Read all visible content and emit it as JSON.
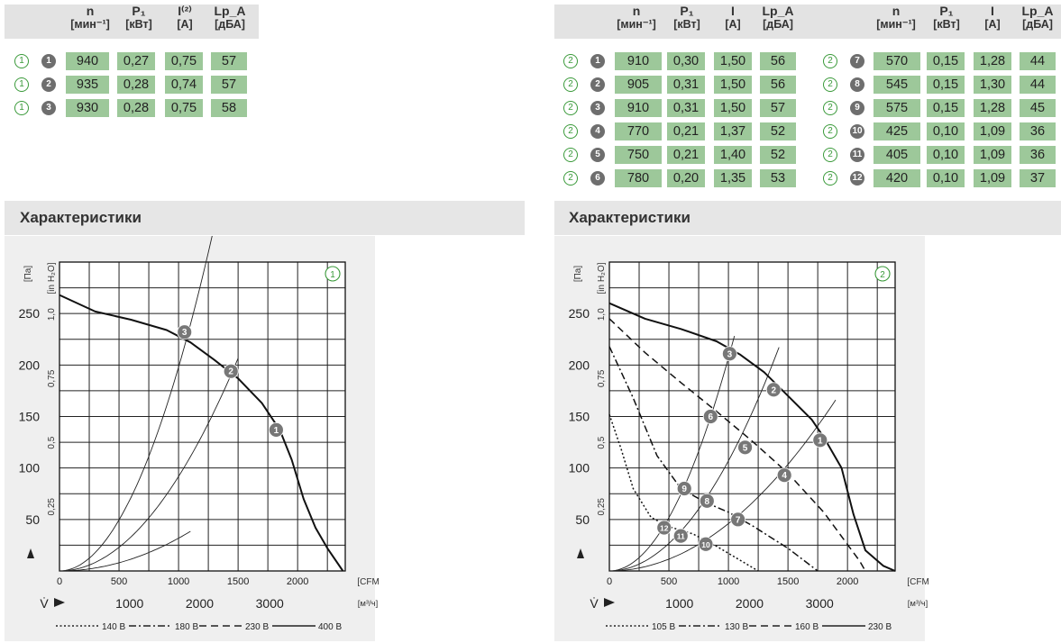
{
  "table_headers": [
    {
      "l1": "n",
      "l2": "[мин⁻¹]"
    },
    {
      "l1": "P₁",
      "l2": "[кВт]"
    },
    {
      "l1": "I⁽²⁾",
      "l2": "[А]"
    },
    {
      "l1": "Lp_A",
      "l2": "[дБА]"
    }
  ],
  "table_headers_right": [
    {
      "l1": "n",
      "l2": "[мин⁻¹]"
    },
    {
      "l1": "P₁",
      "l2": "[кВт]"
    },
    {
      "l1": "I",
      "l2": "[А]"
    },
    {
      "l1": "Lp_A",
      "l2": "[дБА]"
    }
  ],
  "table_left": [
    {
      "circ": "1",
      "pt": "1",
      "n": "940",
      "p1": "0,27",
      "i": "0,75",
      "lp": "57"
    },
    {
      "circ": "1",
      "pt": "2",
      "n": "935",
      "p1": "0,28",
      "i": "0,74",
      "lp": "57"
    },
    {
      "circ": "1",
      "pt": "3",
      "n": "930",
      "p1": "0,28",
      "i": "0,75",
      "lp": "58"
    }
  ],
  "table_right_a": [
    {
      "circ": "2",
      "pt": "1",
      "n": "910",
      "p1": "0,30",
      "i": "1,50",
      "lp": "56"
    },
    {
      "circ": "2",
      "pt": "2",
      "n": "905",
      "p1": "0,31",
      "i": "1,50",
      "lp": "56"
    },
    {
      "circ": "2",
      "pt": "3",
      "n": "910",
      "p1": "0,31",
      "i": "1,50",
      "lp": "57"
    },
    {
      "circ": "2",
      "pt": "4",
      "n": "770",
      "p1": "0,21",
      "i": "1,37",
      "lp": "52"
    },
    {
      "circ": "2",
      "pt": "5",
      "n": "750",
      "p1": "0,21",
      "i": "1,40",
      "lp": "52"
    },
    {
      "circ": "2",
      "pt": "6",
      "n": "780",
      "p1": "0,20",
      "i": "1,35",
      "lp": "53"
    }
  ],
  "table_right_b": [
    {
      "circ": "2",
      "pt": "7",
      "n": "570",
      "p1": "0,15",
      "i": "1,28",
      "lp": "44"
    },
    {
      "circ": "2",
      "pt": "8",
      "n": "545",
      "p1": "0,15",
      "i": "1,30",
      "lp": "44"
    },
    {
      "circ": "2",
      "pt": "9",
      "n": "575",
      "p1": "0,15",
      "i": "1,28",
      "lp": "45"
    },
    {
      "circ": "2",
      "pt": "10",
      "n": "425",
      "p1": "0,10",
      "i": "1,09",
      "lp": "36"
    },
    {
      "circ": "2",
      "pt": "11",
      "n": "405",
      "p1": "0,10",
      "i": "1,09",
      "lp": "36"
    },
    {
      "circ": "2",
      "pt": "12",
      "n": "420",
      "p1": "0,10",
      "i": "1,09",
      "lp": "37"
    }
  ],
  "section_title_left": "Характеристики",
  "section_title_right": "Характеристики",
  "chart_data": [
    {
      "type": "line",
      "badge": "1",
      "xlim_cfm": [
        0,
        2400
      ],
      "ylim_pa": [
        0,
        300
      ],
      "y_ticks_pa": [
        50,
        100,
        150,
        200,
        250
      ],
      "y_ticks_inh2o": [
        "0,25",
        "0,5",
        "0,75",
        "1,0"
      ],
      "x_ticks_cfm": [
        0,
        500,
        1000,
        1500,
        2000
      ],
      "x_ticks_m3h": [
        1000,
        2000,
        3000
      ],
      "y_unit_pa": "[Па]",
      "y_unit_inh2o": "[in H₂O]",
      "x_unit_cfm": "[CFM]",
      "x_unit_m3h": "[м³/ч]",
      "ylabel": "Δ p_fa",
      "xlabel": "V̇",
      "series": [
        {
          "name": "400 В",
          "style": "solid",
          "width": 2,
          "x": [
            0,
            300,
            600,
            900,
            1100,
            1300,
            1500,
            1700,
            1850,
            1950,
            2050,
            2150,
            2250,
            2380
          ],
          "y": [
            268,
            252,
            244,
            234,
            222,
            205,
            187,
            163,
            137,
            108,
            70,
            42,
            22,
            0
          ]
        }
      ],
      "legend": [
        {
          "label": "140 В",
          "style": "dotted"
        },
        {
          "label": "180 В",
          "style": "dashdot"
        },
        {
          "label": "230 В",
          "style": "dashed"
        },
        {
          "label": "400 В",
          "style": "solid"
        }
      ],
      "system_curves": [
        {
          "k": 3.18e-05,
          "xmax": 1100
        },
        {
          "k": 9.18e-05,
          "xmax": 1500
        },
        {
          "k": 0.000198,
          "xmax": 1920
        }
      ],
      "op_points": [
        {
          "label": "1",
          "x": 1820,
          "y": 137
        },
        {
          "label": "2",
          "x": 1440,
          "y": 194
        },
        {
          "label": "3",
          "x": 1050,
          "y": 232
        }
      ]
    },
    {
      "type": "line",
      "badge": "2",
      "xlim_cfm": [
        0,
        2400
      ],
      "ylim_pa": [
        0,
        300
      ],
      "y_ticks_pa": [
        50,
        100,
        150,
        200,
        250
      ],
      "y_ticks_inh2o": [
        "0,25",
        "0,5",
        "0,75",
        "1,0"
      ],
      "x_ticks_cfm": [
        0,
        500,
        1000,
        1500,
        2000
      ],
      "x_ticks_m3h": [
        1000,
        2000,
        3000
      ],
      "y_unit_pa": "[Па]",
      "y_unit_inh2o": "[in H₂O]",
      "x_unit_cfm": "[CFM]",
      "x_unit_m3h": "[м³/ч]",
      "ylabel": "Δ p_fa",
      "xlabel": "V̇",
      "series": [
        {
          "name": "230 В",
          "style": "solid",
          "width": 2,
          "x": [
            0,
            300,
            600,
            900,
            1100,
            1300,
            1500,
            1700,
            1800,
            1950,
            2050,
            2150,
            2300,
            2400
          ],
          "y": [
            260,
            245,
            235,
            223,
            210,
            193,
            170,
            147,
            130,
            100,
            55,
            20,
            5,
            0
          ]
        },
        {
          "name": "160 В",
          "style": "dashed",
          "width": 1.5,
          "x": [
            0,
            300,
            600,
            900,
            1200,
            1500,
            1800,
            2100,
            2150
          ],
          "y": [
            245,
            212,
            183,
            155,
            126,
            95,
            57,
            10,
            0
          ]
        },
        {
          "name": "130 В",
          "style": "dashdot",
          "width": 1.5,
          "x": [
            0,
            200,
            400,
            600,
            800,
            1000,
            1200,
            1500,
            1750
          ],
          "y": [
            218,
            168,
            112,
            80,
            67,
            57,
            44,
            22,
            0
          ]
        },
        {
          "name": "105 В",
          "style": "dotted",
          "width": 1.5,
          "x": [
            0,
            100,
            200,
            350,
            500,
            700,
            900,
            1250
          ],
          "y": [
            152,
            118,
            80,
            52,
            43,
            36,
            24,
            0
          ]
        }
      ],
      "legend": [
        {
          "label": "105 В",
          "style": "dotted"
        },
        {
          "label": "130 В",
          "style": "dashdot"
        },
        {
          "label": "160 В",
          "style": "dashed"
        },
        {
          "label": "230 В",
          "style": "solid"
        }
      ],
      "system_curves": [
        {
          "k": 0.000207,
          "xmax": 1050
        },
        {
          "k": 0.000107,
          "xmax": 1430
        },
        {
          "k": 4.6e-05,
          "xmax": 1920
        }
      ],
      "op_points": [
        {
          "label": "1",
          "x": 1770,
          "y": 127
        },
        {
          "label": "2",
          "x": 1380,
          "y": 176
        },
        {
          "label": "3",
          "x": 1010,
          "y": 211
        },
        {
          "label": "4",
          "x": 1470,
          "y": 93
        },
        {
          "label": "5",
          "x": 1140,
          "y": 120
        },
        {
          "label": "6",
          "x": 850,
          "y": 150
        },
        {
          "label": "7",
          "x": 1080,
          "y": 50
        },
        {
          "label": "8",
          "x": 820,
          "y": 68
        },
        {
          "label": "9",
          "x": 630,
          "y": 80
        },
        {
          "label": "10",
          "x": 810,
          "y": 26
        },
        {
          "label": "11",
          "x": 600,
          "y": 34
        },
        {
          "label": "12",
          "x": 460,
          "y": 42
        }
      ]
    }
  ]
}
